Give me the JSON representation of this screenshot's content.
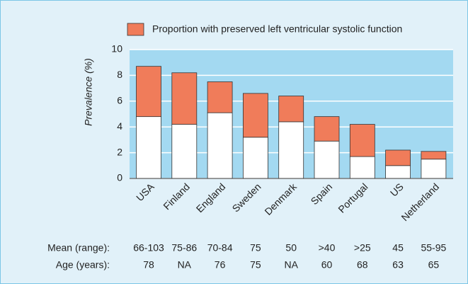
{
  "chart_data": {
    "type": "stacked_bar",
    "categories": [
      "USA",
      "Finland",
      "England",
      "Sweden",
      "Denmark",
      "Spain",
      "Portugal",
      "US",
      "Netherland"
    ],
    "series": [
      {
        "name": null,
        "color": "#ffffff",
        "values": [
          4.8,
          4.2,
          5.1,
          3.2,
          4.4,
          2.9,
          1.7,
          1.0,
          1.5
        ]
      },
      {
        "name": "Proportion with preserved left ventricular systolic function",
        "color": "#f07c5a",
        "values": [
          3.9,
          4.0,
          2.4,
          3.4,
          2.0,
          1.9,
          2.5,
          1.2,
          0.6
        ]
      }
    ],
    "ylabel": "Prevalence (%)",
    "ylim": [
      0,
      10
    ],
    "yticks": [
      0,
      2,
      4,
      6,
      8,
      10
    ],
    "grid": true,
    "legend": "top",
    "table": {
      "rows": [
        {
          "label": "Mean (range):",
          "cells": [
            "66-103",
            "75-86",
            "70-84",
            "75",
            "50",
            ">40",
            ">25",
            "45",
            "55-95"
          ]
        },
        {
          "label": "Age (years):",
          "cells": [
            "78",
            "NA",
            "76",
            "75",
            "NA",
            "60",
            "68",
            "63",
            "65"
          ]
        }
      ]
    }
  }
}
